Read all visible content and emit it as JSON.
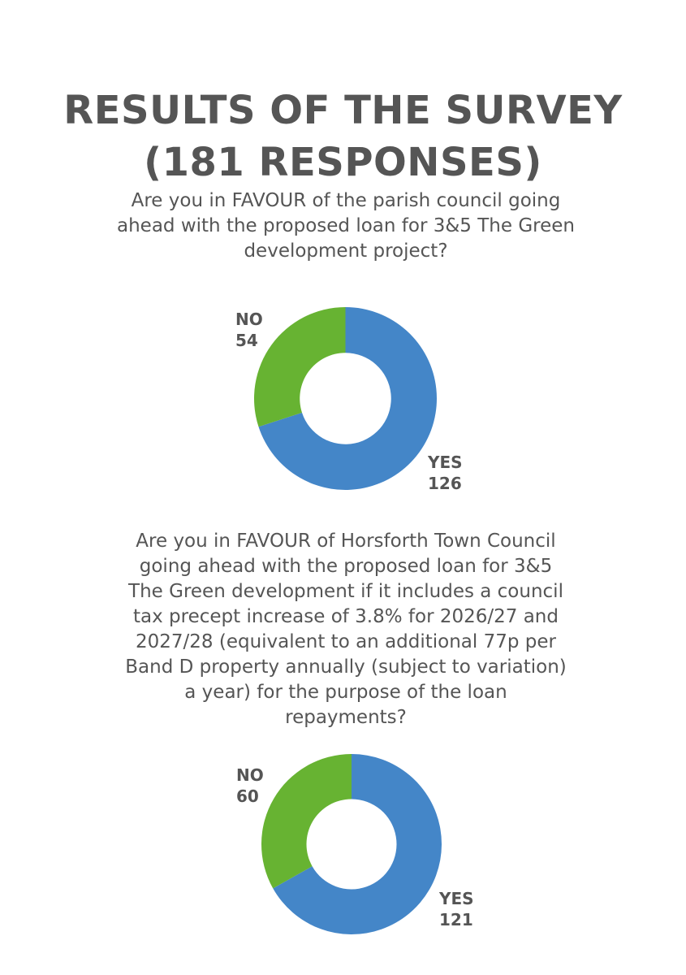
{
  "title": {
    "line1": "RESULTS OF THE SURVEY",
    "line2": "(181 RESPONSES)"
  },
  "chart_data": [
    {
      "type": "pie",
      "title": "",
      "question_lines": [
        "Are you in FAVOUR of the parish council going",
        "ahead with the proposed loan for 3&5 The Green",
        "development project?"
      ],
      "categories": [
        "YES",
        "NO"
      ],
      "values": [
        126,
        54
      ],
      "colors": [
        "#4486c8",
        "#67b332"
      ],
      "style": "donut"
    },
    {
      "type": "pie",
      "title": "",
      "question_lines": [
        "Are you in FAVOUR of Horsforth Town Council",
        "going ahead with the proposed loan for 3&5",
        "The Green development if it includes a council",
        "tax precept increase of 3.8% for 2026/27 and",
        "2027/28 (equivalent to an additional 77p per",
        "Band D property annually (subject to variation)",
        "a year) for the purpose of the loan",
        "repayments?"
      ],
      "categories": [
        "YES",
        "NO"
      ],
      "values": [
        121,
        60
      ],
      "colors": [
        "#4486c8",
        "#67b332"
      ],
      "style": "donut"
    }
  ]
}
